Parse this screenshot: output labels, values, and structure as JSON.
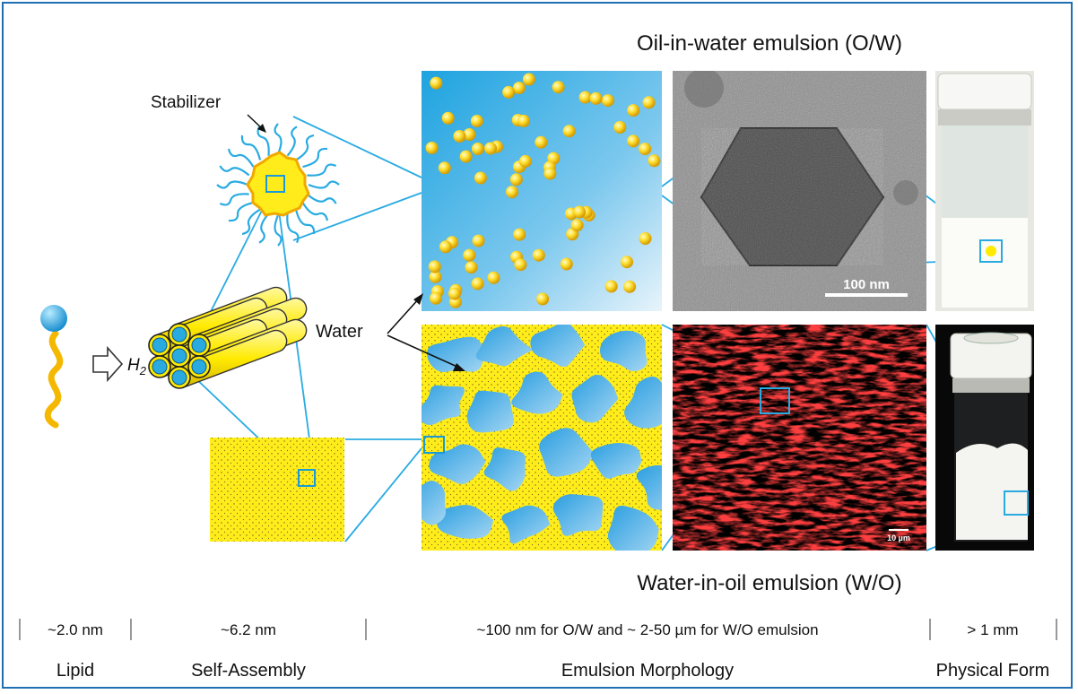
{
  "title_top": "Oil-in-water emulsion (O/W)",
  "title_bottom": "Water-in-oil emulsion (W/O)",
  "labels": {
    "stabilizer": "Stabilizer",
    "water": "Water",
    "h2": "H",
    "h2_sub": "2",
    "scalebar_tem": "100 nm",
    "scalebar_conf": "10 µm"
  },
  "scale_row": [
    "~2.0 nm",
    "~6.2 nm",
    "~100 nm for O/W and ~ 2-50 µm for W/O emulsion",
    "> 1 mm"
  ],
  "category_row": [
    "Lipid",
    "Self-Assembly",
    "Emulsion Morphology",
    "Physical Form"
  ],
  "colors": {
    "frame": "#1f6fb2",
    "connector": "#29abe2",
    "yellow": "#ffea00",
    "lipid_head": "#29abe2",
    "lipid_tail": "#f5b800"
  }
}
